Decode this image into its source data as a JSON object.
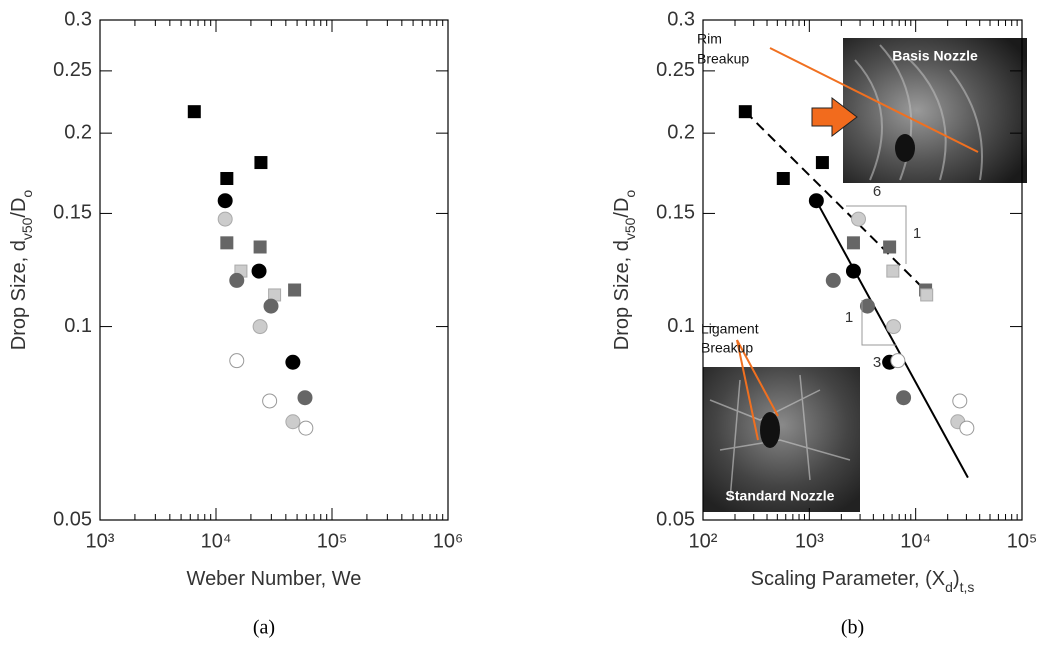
{
  "chart_data": [
    {
      "type": "scatter",
      "caption": "(a)",
      "xlabel": [
        "Weber Number, We"
      ],
      "ylabel": [
        "Drop Size, d",
        "v50",
        "/D",
        "o"
      ],
      "xscale": "log",
      "yscale": "log",
      "xlim": [
        1000,
        1000000
      ],
      "ylim": [
        0.05,
        0.3
      ],
      "xticks": [
        {
          "value": 1000,
          "label": "10³"
        },
        {
          "value": 10000,
          "label": "10⁴"
        },
        {
          "value": 100000,
          "label": "10⁵"
        },
        {
          "value": 1000000,
          "label": "10⁶"
        }
      ],
      "yticks": [
        0.05,
        0.1,
        0.15,
        0.2,
        0.25,
        0.3
      ],
      "series": [
        {
          "marker": "square",
          "color": "#000000",
          "x": [
            6500,
            24400,
            12400
          ],
          "values": [
            0.216,
            0.18,
            0.17
          ]
        },
        {
          "marker": "square",
          "color": "#666666",
          "x": [
            12400,
            24000,
            47600
          ],
          "values": [
            0.135,
            0.133,
            0.114
          ]
        },
        {
          "marker": "square",
          "color": "#cccccc",
          "x": [
            16400,
            32000
          ],
          "values": [
            0.122,
            0.112
          ]
        },
        {
          "marker": "circle",
          "color": "#000000",
          "x": [
            12000,
            23500,
            46000
          ],
          "values": [
            0.157,
            0.122,
            0.088
          ]
        },
        {
          "marker": "circle",
          "color": "#666666",
          "x": [
            15100,
            29800,
            58500
          ],
          "values": [
            0.118,
            0.1076,
            0.0775
          ]
        },
        {
          "marker": "circle",
          "color": "#cccccc",
          "x": [
            12000,
            24000,
            46000
          ],
          "values": [
            0.147,
            0.1,
            0.0711
          ]
        },
        {
          "marker": "circle",
          "color": "#ffffff",
          "x": [
            15100,
            29000,
            59500
          ],
          "values": [
            0.0885,
            0.0766,
            0.0695
          ]
        }
      ]
    },
    {
      "type": "scatter",
      "caption": "(b)",
      "xlabel": [
        "Scaling Parameter, (X",
        "d",
        ")",
        "t,s"
      ],
      "ylabel": [
        "Drop Size, d",
        "v50",
        "/D",
        "o"
      ],
      "xscale": "log",
      "yscale": "log",
      "xlim": [
        100,
        100000
      ],
      "ylim": [
        0.05,
        0.3
      ],
      "xticks": [
        {
          "value": 100,
          "label": "10²"
        },
        {
          "value": 1000,
          "label": "10³"
        },
        {
          "value": 10000,
          "label": "10⁴"
        },
        {
          "value": 100000,
          "label": "10⁵"
        }
      ],
      "yticks": [
        0.05,
        0.1,
        0.15,
        0.2,
        0.25,
        0.3
      ],
      "series": [
        {
          "marker": "square",
          "color": "#000000",
          "x": [
            250,
            1327,
            569
          ],
          "values": [
            0.216,
            0.18,
            0.17
          ]
        },
        {
          "marker": "square",
          "color": "#666666",
          "x": [
            2600,
            5690,
            12400
          ],
          "values": [
            0.135,
            0.133,
            0.114
          ]
        },
        {
          "marker": "square",
          "color": "#cccccc",
          "x": [
            6100,
            12700
          ],
          "values": [
            0.122,
            0.112
          ]
        },
        {
          "marker": "circle",
          "color": "#000000",
          "x": [
            1164,
            2600,
            5690
          ],
          "values": [
            0.157,
            0.122,
            0.088
          ]
        },
        {
          "marker": "circle",
          "color": "#666666",
          "x": [
            1680,
            3520,
            7700
          ],
          "values": [
            0.118,
            0.1076,
            0.0775
          ]
        },
        {
          "marker": "circle",
          "color": "#cccccc",
          "x": [
            2900,
            6200,
            24900
          ],
          "values": [
            0.147,
            0.1,
            0.0711
          ]
        },
        {
          "marker": "circle",
          "color": "#ffffff",
          "x": [
            6800,
            26000,
            30300
          ],
          "values": [
            0.0885,
            0.0766,
            0.0695
          ]
        }
      ],
      "fit_lines": [
        {
          "dash": true,
          "x": [
            250,
            12900
          ],
          "values": [
            0.216,
            0.113
          ]
        },
        {
          "dash": false,
          "x": [
            1160,
            31000
          ],
          "values": [
            0.157,
            0.0582
          ]
        }
      ],
      "annotations": {
        "rim": [
          "Rim",
          "Breakup"
        ],
        "ligament": [
          "Ligament",
          "Breakup"
        ],
        "basis": "Basis Nozzle",
        "standard": "Standard Nozzle",
        "slope_a": [
          "6",
          "1"
        ],
        "slope_b": [
          "1",
          "3"
        ]
      }
    }
  ]
}
